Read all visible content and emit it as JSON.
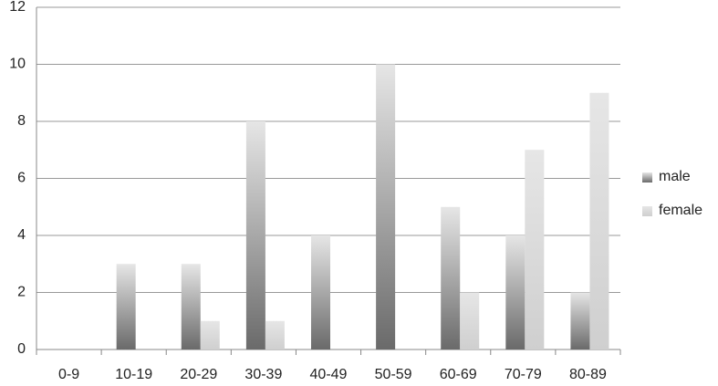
{
  "chart_data": {
    "type": "bar",
    "categories": [
      "0-9",
      "10-19",
      "20-29",
      "30-39",
      "40-49",
      "50-59",
      "60-69",
      "70-79",
      "80-89"
    ],
    "series": [
      {
        "name": "male",
        "color": "#6a6a6a",
        "values": [
          0,
          3,
          3,
          8,
          4,
          10,
          5,
          4,
          2
        ]
      },
      {
        "name": "female",
        "color": "#cfcfcf",
        "values": [
          0,
          0,
          1,
          1,
          0,
          0,
          2,
          7,
          9
        ]
      }
    ],
    "ylim": [
      0,
      12
    ],
    "yticks": [
      0,
      2,
      4,
      6,
      8,
      10,
      12
    ],
    "grid": true,
    "legend": "right"
  }
}
